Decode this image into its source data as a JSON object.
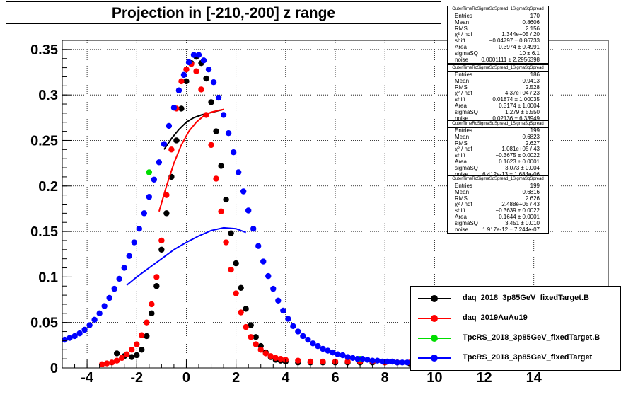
{
  "title": "Projection in [-210,-200] z range",
  "stat_boxes": [
    {
      "name": "OuterTimeRcSigmaSqSpread_1SigmaSqSpread",
      "rows": [
        {
          "k": "Entries",
          "v": "170"
        },
        {
          "k": "Mean",
          "v": "0.8606"
        },
        {
          "k": "RMS",
          "v": "2.156"
        },
        {
          "k": "χ² / ndf",
          "v": "1.344e+05 / 20"
        },
        {
          "k": "shift",
          "v": "−0.04797 ± 0.86733"
        },
        {
          "k": "Area",
          "v": "0.3974 ± 0.4991"
        },
        {
          "k": "sigmaSQ",
          "v": "10 ± 6.1"
        },
        {
          "k": "noise",
          "v": "0.0001111 ± 2.2956398"
        }
      ]
    },
    {
      "name": "OuterTimeRcSigmaSqSpread_1SigmaSqSpread",
      "rows": [
        {
          "k": "Entries",
          "v": "186"
        },
        {
          "k": "Mean",
          "v": "0.9413"
        },
        {
          "k": "RMS",
          "v": "2.528"
        },
        {
          "k": "χ² / ndf",
          "v": "4.37e+04 / 23"
        },
        {
          "k": "shift",
          "v": "0.01874 ± 1.00035"
        },
        {
          "k": "Area",
          "v": "0.3174 ± 1.0004"
        },
        {
          "k": "sigmaSQ",
          "v": "1.279 ± 5.550"
        },
        {
          "k": "noise",
          "v": "0.02136 ± 6.33949"
        }
      ]
    },
    {
      "name": "OuterTimeRcSigmaSqSpread_1SigmaSqSpread",
      "rows": [
        {
          "k": "Entries",
          "v": "199"
        },
        {
          "k": "Mean",
          "v": "0.6823"
        },
        {
          "k": "RMS",
          "v": "2.627"
        },
        {
          "k": "χ² / ndf",
          "v": "1.081e+05 / 43"
        },
        {
          "k": "shift",
          "v": "−0.3675 ± 0.0022"
        },
        {
          "k": "Area",
          "v": "0.1623 ± 0.0001"
        },
        {
          "k": "sigmaSQ",
          "v": "3.073 ± 0.004"
        },
        {
          "k": "noise",
          "v": "6.412e-13 ± 1.684e-06"
        }
      ]
    },
    {
      "name": "OuterTimeRcSigmaSqSpread_1SigmaSqSpread",
      "rows": [
        {
          "k": "Entries",
          "v": "199"
        },
        {
          "k": "Mean",
          "v": "0.6816"
        },
        {
          "k": "RMS",
          "v": "2.626"
        },
        {
          "k": "χ² / ndf",
          "v": "2.488e+05 / 43"
        },
        {
          "k": "shift",
          "v": "−0.3639 ± 0.0022"
        },
        {
          "k": "Area",
          "v": "0.1644 ± 0.0001"
        },
        {
          "k": "sigmaSQ",
          "v": "3.451 ± 0.010"
        },
        {
          "k": "noise",
          "v": "1.917e-12 ± 7.244e-07"
        }
      ]
    }
  ],
  "chart_data": {
    "type": "scatter",
    "title": "Projection in [-210,-200] z range",
    "xlabel": "",
    "ylabel": "",
    "xlim": [
      -5,
      17
    ],
    "ylim": [
      0,
      0.36
    ],
    "xticks": [
      -4,
      -2,
      0,
      2,
      4,
      6,
      8,
      10,
      12,
      14
    ],
    "yticks": [
      0,
      0.05,
      0.1,
      0.15,
      0.2,
      0.25,
      0.3,
      0.35
    ],
    "grid": true,
    "legend_position": "bottom-right",
    "series": [
      {
        "name": "daq_2018_3p85GeV_fixedTarget.B",
        "color": "#000000",
        "points": [
          [
            -2.8,
            0.016
          ],
          [
            -2.5,
            0.013
          ],
          [
            -2.2,
            0.012
          ],
          [
            -2.0,
            0.014
          ],
          [
            -1.8,
            0.02
          ],
          [
            -1.6,
            0.035
          ],
          [
            -1.4,
            0.06
          ],
          [
            -1.2,
            0.09
          ],
          [
            -1.0,
            0.13
          ],
          [
            -0.8,
            0.17
          ],
          [
            -0.6,
            0.21
          ],
          [
            -0.4,
            0.25
          ],
          [
            -0.2,
            0.285
          ],
          [
            0.0,
            0.315
          ],
          [
            0.2,
            0.335
          ],
          [
            0.4,
            0.342
          ],
          [
            0.6,
            0.335
          ],
          [
            0.8,
            0.318
          ],
          [
            1.0,
            0.292
          ],
          [
            1.2,
            0.26
          ],
          [
            1.4,
            0.222
          ],
          [
            1.6,
            0.185
          ],
          [
            1.8,
            0.148
          ],
          [
            2.0,
            0.115
          ],
          [
            2.2,
            0.088
          ],
          [
            2.4,
            0.065
          ],
          [
            2.6,
            0.047
          ],
          [
            2.8,
            0.034
          ],
          [
            3.0,
            0.024
          ],
          [
            3.2,
            0.017
          ],
          [
            3.4,
            0.012
          ],
          [
            3.6,
            0.009
          ],
          [
            3.8,
            0.008
          ],
          [
            4.0,
            0.007
          ],
          [
            4.5,
            0.006
          ],
          [
            5.0,
            0.006
          ],
          [
            5.5,
            0.006
          ],
          [
            6.0,
            0.006
          ],
          [
            6.5,
            0.006
          ],
          [
            7.0,
            0.006
          ],
          [
            7.5,
            0.006
          ],
          [
            8.0,
            0.006
          ],
          [
            8.5,
            0.006
          ],
          [
            9.0,
            0.005
          ]
        ],
        "fit": [
          [
            -0.9,
            0.24
          ],
          [
            -0.6,
            0.252
          ],
          [
            -0.3,
            0.262
          ],
          [
            0.0,
            0.27
          ],
          [
            0.3,
            0.275
          ],
          [
            0.6,
            0.278
          ],
          [
            0.9,
            0.28
          ],
          [
            1.2,
            0.282
          ],
          [
            1.5,
            0.284
          ]
        ]
      },
      {
        "name": "daq_2019AuAu19",
        "color": "#ff0000",
        "points": [
          [
            -3.4,
            0.004
          ],
          [
            -3.2,
            0.005
          ],
          [
            -3.0,
            0.006
          ],
          [
            -2.8,
            0.008
          ],
          [
            -2.6,
            0.011
          ],
          [
            -2.4,
            0.015
          ],
          [
            -2.2,
            0.02
          ],
          [
            -2.0,
            0.026
          ],
          [
            -1.8,
            0.036
          ],
          [
            -1.6,
            0.05
          ],
          [
            -1.4,
            0.07
          ],
          [
            -1.2,
            0.1
          ],
          [
            -1.0,
            0.14
          ],
          [
            -0.8,
            0.19
          ],
          [
            -0.6,
            0.24
          ],
          [
            -0.4,
            0.285
          ],
          [
            -0.2,
            0.315
          ],
          [
            0.0,
            0.328
          ],
          [
            0.2,
            0.334
          ],
          [
            0.4,
            0.326
          ],
          [
            0.6,
            0.306
          ],
          [
            0.8,
            0.278
          ],
          [
            1.0,
            0.245
          ],
          [
            1.2,
            0.208
          ],
          [
            1.4,
            0.172
          ],
          [
            1.6,
            0.138
          ],
          [
            1.8,
            0.108
          ],
          [
            2.0,
            0.082
          ],
          [
            2.2,
            0.061
          ],
          [
            2.4,
            0.045
          ],
          [
            2.6,
            0.034
          ],
          [
            2.8,
            0.026
          ],
          [
            3.0,
            0.02
          ],
          [
            3.2,
            0.016
          ],
          [
            3.4,
            0.013
          ],
          [
            3.6,
            0.011
          ],
          [
            3.8,
            0.01
          ],
          [
            4.0,
            0.009
          ],
          [
            4.5,
            0.008
          ],
          [
            5.0,
            0.007
          ],
          [
            5.5,
            0.007
          ],
          [
            6.0,
            0.007
          ],
          [
            6.5,
            0.007
          ],
          [
            7.0,
            0.007
          ],
          [
            7.5,
            0.007
          ],
          [
            8.0,
            0.006
          ],
          [
            8.5,
            0.006
          ],
          [
            9.0,
            0.006
          ]
        ],
        "fit": [
          [
            -1.1,
            0.172
          ],
          [
            -0.8,
            0.2
          ],
          [
            -0.5,
            0.225
          ],
          [
            -0.2,
            0.245
          ],
          [
            0.1,
            0.26
          ],
          [
            0.4,
            0.27
          ],
          [
            0.7,
            0.277
          ],
          [
            1.0,
            0.281
          ],
          [
            1.3,
            0.283
          ],
          [
            1.5,
            0.284
          ]
        ]
      },
      {
        "name": "TpcRS_2018_3p85GeV_fixedTarget.B",
        "color": "#00dd00",
        "points": [
          [
            -1.5,
            0.215
          ],
          [
            7.0,
            0.01
          ]
        ],
        "fit": []
      },
      {
        "name": "TpcRS_2018_3p85GeV_fixedTarget",
        "color": "#0000ff",
        "points": [
          [
            -4.9,
            0.031
          ],
          [
            -4.7,
            0.033
          ],
          [
            -4.5,
            0.035
          ],
          [
            -4.3,
            0.038
          ],
          [
            -4.1,
            0.042
          ],
          [
            -3.9,
            0.047
          ],
          [
            -3.7,
            0.053
          ],
          [
            -3.5,
            0.06
          ],
          [
            -3.3,
            0.068
          ],
          [
            -3.1,
            0.077
          ],
          [
            -2.9,
            0.087
          ],
          [
            -2.7,
            0.098
          ],
          [
            -2.5,
            0.11
          ],
          [
            -2.3,
            0.123
          ],
          [
            -2.1,
            0.138
          ],
          [
            -1.9,
            0.153
          ],
          [
            -1.7,
            0.17
          ],
          [
            -1.5,
            0.188
          ],
          [
            -1.3,
            0.207
          ],
          [
            -1.1,
            0.226
          ],
          [
            -0.9,
            0.246
          ],
          [
            -0.7,
            0.266
          ],
          [
            -0.5,
            0.286
          ],
          [
            -0.3,
            0.305
          ],
          [
            -0.1,
            0.322
          ],
          [
            0.1,
            0.336
          ],
          [
            0.3,
            0.344
          ],
          [
            0.5,
            0.344
          ],
          [
            0.7,
            0.338
          ],
          [
            0.9,
            0.328
          ],
          [
            1.1,
            0.314
          ],
          [
            1.3,
            0.297
          ],
          [
            1.5,
            0.278
          ],
          [
            1.7,
            0.258
          ],
          [
            1.9,
            0.237
          ],
          [
            2.1,
            0.215
          ],
          [
            2.3,
            0.194
          ],
          [
            2.5,
            0.173
          ],
          [
            2.7,
            0.153
          ],
          [
            2.9,
            0.134
          ],
          [
            3.1,
            0.117
          ],
          [
            3.3,
            0.101
          ],
          [
            3.5,
            0.087
          ],
          [
            3.7,
            0.074
          ],
          [
            3.9,
            0.063
          ],
          [
            4.1,
            0.054
          ],
          [
            4.3,
            0.046
          ],
          [
            4.5,
            0.04
          ],
          [
            4.7,
            0.035
          ],
          [
            4.9,
            0.031
          ],
          [
            5.1,
            0.027
          ],
          [
            5.3,
            0.024
          ],
          [
            5.5,
            0.021
          ],
          [
            5.7,
            0.019
          ],
          [
            5.9,
            0.017
          ],
          [
            6.1,
            0.015
          ],
          [
            6.3,
            0.014
          ],
          [
            6.5,
            0.012
          ],
          [
            6.7,
            0.011
          ],
          [
            6.9,
            0.01
          ],
          [
            7.1,
            0.01
          ],
          [
            7.3,
            0.009
          ],
          [
            7.5,
            0.008
          ],
          [
            7.7,
            0.008
          ],
          [
            7.9,
            0.007
          ],
          [
            8.1,
            0.007
          ],
          [
            8.3,
            0.007
          ],
          [
            8.5,
            0.006
          ],
          [
            8.7,
            0.006
          ],
          [
            8.9,
            0.006
          ],
          [
            9.1,
            0.006
          ],
          [
            9.3,
            0.005
          ],
          [
            9.5,
            0.005
          ],
          [
            9.7,
            0.005
          ],
          [
            9.9,
            0.005
          ]
        ],
        "fit": [
          [
            -2.4,
            0.091
          ],
          [
            -2.0,
            0.1
          ],
          [
            -1.5,
            0.11
          ],
          [
            -1.0,
            0.12
          ],
          [
            -0.5,
            0.13
          ],
          [
            0.0,
            0.138
          ],
          [
            0.5,
            0.145
          ],
          [
            1.0,
            0.151
          ],
          [
            1.5,
            0.154
          ],
          [
            2.0,
            0.153
          ],
          [
            2.4,
            0.149
          ]
        ]
      }
    ]
  }
}
